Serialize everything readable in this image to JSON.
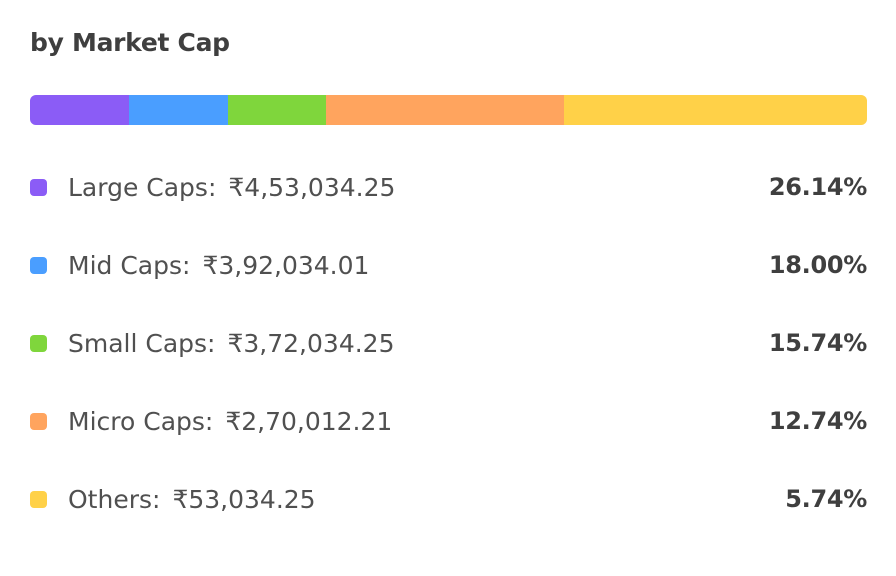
{
  "title": "by Market Cap",
  "chart_data": {
    "type": "bar",
    "orientation": "horizontal-stacked",
    "title": "by Market Cap",
    "categories": [
      "Large Caps:",
      "Mid Caps:",
      "Small Caps:",
      "Micro Caps:",
      "Others:"
    ],
    "amounts": [
      "₹4,53,034.25",
      "₹3,92,034.01",
      "₹3,72,034.25",
      "₹2,70,012.21",
      "₹53,034.25"
    ],
    "percent_labels": [
      "26.14%",
      "18.00%",
      "15.74%",
      "12.74%",
      "5.74%"
    ],
    "bar_segment_fractions": [
      0.118,
      0.118,
      0.118,
      0.284,
      0.362
    ],
    "colors": [
      "#8B5CF6",
      "#4A9EFF",
      "#7FD63C",
      "#FFA45E",
      "#FFD148"
    ],
    "legend_placement": "bottom"
  }
}
